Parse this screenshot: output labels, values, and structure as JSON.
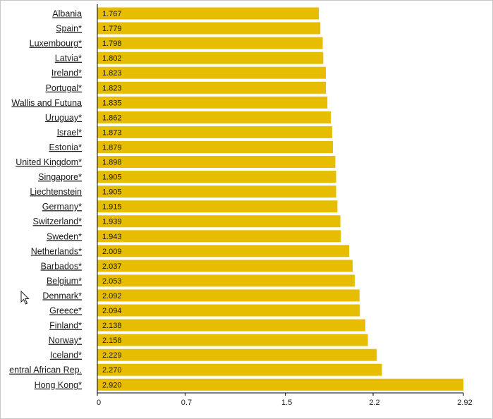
{
  "chart_data": {
    "type": "bar",
    "orientation": "horizontal",
    "categories": [
      "Albania",
      "Spain*",
      "Luxembourg*",
      "Latvia*",
      "Ireland*",
      "Portugal*",
      "Wallis and Futuna",
      "Uruguay*",
      "Israel*",
      "Estonia*",
      "United Kingdom*",
      "Singapore*",
      "Liechtenstein",
      "Germany*",
      "Switzerland*",
      "Sweden*",
      "Netherlands*",
      "Barbados*",
      "Belgium*",
      "Denmark*",
      "Greece*",
      "Finland*",
      "Norway*",
      "Iceland*",
      "entral African Rep.",
      "Hong Kong*"
    ],
    "values": [
      1.767,
      1.779,
      1.798,
      1.802,
      1.823,
      1.823,
      1.835,
      1.862,
      1.873,
      1.879,
      1.898,
      1.905,
      1.905,
      1.915,
      1.939,
      1.943,
      2.009,
      2.037,
      2.053,
      2.092,
      2.094,
      2.138,
      2.158,
      2.229,
      2.27,
      2.92
    ],
    "value_labels": [
      "1.767",
      "1.779",
      "1.798",
      "1.802",
      "1.823",
      "1.823",
      "1.835",
      "1.862",
      "1.873",
      "1.879",
      "1.898",
      "1.905",
      "1.905",
      "1.915",
      "1.939",
      "1.943",
      "2.009",
      "2.037",
      "2.053",
      "2.092",
      "2.094",
      "2.138",
      "2.158",
      "2.229",
      "2.270",
      "2.920"
    ],
    "xticks": [
      0,
      0.7,
      1.5,
      2.2,
      2.92
    ],
    "xtick_labels": [
      "0",
      "0.7",
      "1.5",
      "2.2",
      "2.92"
    ],
    "xlim": [
      0,
      2.92
    ],
    "grid": false,
    "colors": {
      "bar": "#e6bd00",
      "bar_edge": "#cfa800",
      "axis": "#000000"
    }
  },
  "cursor": {
    "icon": "mouse-pointer-icon"
  }
}
